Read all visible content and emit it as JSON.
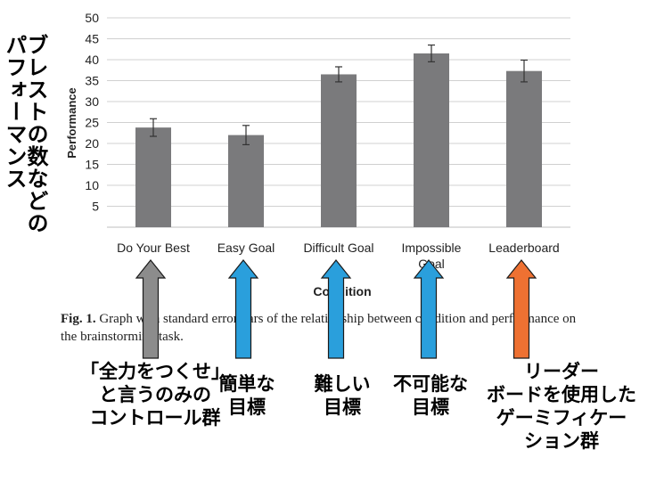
{
  "chart_data": {
    "type": "bar",
    "categories": [
      "Do Your Best",
      "Easy Goal",
      "Difficult Goal",
      "Impossible Goal",
      "Leaderboard"
    ],
    "values": [
      23.8,
      22.0,
      36.5,
      41.5,
      37.3
    ],
    "error": [
      2.1,
      2.3,
      1.8,
      2.0,
      2.6
    ],
    "ylabel": "Performance",
    "xlabel": "Condition",
    "ylim": [
      0,
      50
    ],
    "yticks": [
      5,
      10,
      15,
      20,
      25,
      30,
      35,
      40,
      45,
      50
    ],
    "grid": true,
    "bar_color": "#7a7a7c",
    "grid_color": "#d0d0d0"
  },
  "caption": {
    "label": "Fig. 1.",
    "text": "Graph with standard error bars of the relationship between condition and performance on the brainstorming task."
  },
  "annotation": {
    "ylabel_jp_line1": "ブレストの数などの",
    "ylabel_jp_line2": "パフォーマンス",
    "labels": [
      "「全力をつくせ」\nと言うのみの\nコントロール群",
      "簡単な\n目標",
      "難しい\n目標",
      "不可能な\n目標",
      "リーダー\nボードを使用した\nゲーミフィケー\nション群"
    ],
    "arrow_colors": [
      "#8c8c8c",
      "#2a9fdc",
      "#2a9fdc",
      "#2a9fdc",
      "#ee7132"
    ]
  }
}
